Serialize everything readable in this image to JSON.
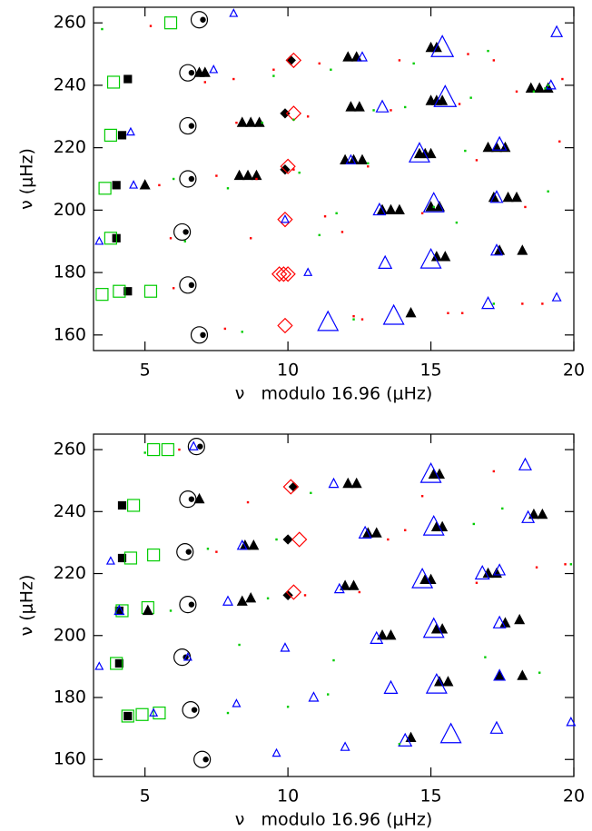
{
  "chart_data": [
    {
      "type": "scatter",
      "xlabel": "ν   modulo 16.96 (μHz)",
      "ylabel": "ν (μHz)",
      "xlim": [
        3.2,
        20
      ],
      "ylim": [
        155,
        265
      ],
      "xticks": [
        5,
        10,
        15,
        20
      ],
      "yticks": [
        160,
        180,
        200,
        220,
        240,
        260
      ],
      "series": [
        {
          "marker": "circle-dot",
          "color": "#000000",
          "size": 1,
          "x": [
            6.9,
            6.5,
            6.5,
            6.5,
            6.3,
            6.5,
            6.9
          ],
          "values": [
            261,
            244,
            227,
            210,
            193,
            176,
            160
          ]
        },
        {
          "marker": "square",
          "filled": true,
          "color": "#000000",
          "size": 0.8,
          "x": [
            4.4,
            4.2,
            4.0,
            4.0,
            4.4
          ],
          "values": [
            242,
            224,
            208,
            191,
            174
          ]
        },
        {
          "marker": "square",
          "filled": false,
          "color": "#00cc00",
          "size": 1.3,
          "x": [
            5.9,
            3.9,
            3.8,
            3.6,
            3.8,
            4.1,
            3.5,
            5.2
          ],
          "values": [
            260,
            241,
            224,
            207,
            191,
            174,
            173,
            174
          ]
        },
        {
          "marker": "diamond",
          "filled": true,
          "color": "#000000",
          "size": 0.8,
          "x": [
            10.1,
            9.9,
            9.9
          ],
          "values": [
            248,
            231,
            213
          ]
        },
        {
          "marker": "diamond",
          "filled": false,
          "color": "#ff0000",
          "size": 1.3,
          "x": [
            10.2,
            10.2,
            10.0,
            9.9,
            9.7,
            9.85,
            10.0,
            9.9
          ],
          "values": [
            248,
            231,
            214,
            197,
            179.5,
            179.5,
            179.5,
            163
          ]
        },
        {
          "marker": "triangle",
          "filled": true,
          "color": "#000000",
          "size": 1,
          "x": [
            12.1,
            12.4,
            15.0,
            15.2,
            18.5,
            18.8,
            19.1,
            15.0,
            15.2,
            15.4,
            12.2,
            12.5,
            8.4,
            8.7,
            9.0,
            6.9,
            7.1,
            14.6,
            14.8,
            15.0,
            17.0,
            17.3,
            17.6,
            12.0,
            12.3,
            12.6,
            8.3,
            8.6,
            8.9,
            5.0,
            17.2,
            17.7,
            18.0,
            15.0,
            15.3,
            13.3,
            13.6,
            13.9,
            17.4,
            18.2,
            15.2,
            15.5,
            14.3
          ],
          "values": [
            249,
            249,
            252,
            252,
            239,
            239,
            239,
            235,
            235,
            235,
            233,
            233,
            228,
            228,
            228,
            244,
            244,
            218,
            218,
            218,
            220,
            220,
            220,
            216,
            216,
            216,
            211,
            211,
            211,
            208,
            204,
            204,
            204,
            201,
            201,
            200,
            200,
            200,
            187,
            187,
            185,
            185,
            167
          ]
        },
        {
          "marker": "triangle",
          "filled": false,
          "color": "#0000ff",
          "x": [
            8.1,
            7.4,
            12.6,
            15.4,
            19.4,
            19.2,
            15.5,
            13.3,
            4.5,
            12.2,
            14.6,
            17.4,
            4.6,
            15.1,
            17.3,
            13.2,
            3.4,
            9.9,
            17.3,
            15.0,
            13.4,
            10.7,
            11.4,
            13.7,
            17.0,
            19.4
          ],
          "values": [
            263,
            245,
            249,
            252,
            257,
            240,
            236,
            233,
            225,
            216,
            218,
            221,
            208,
            202,
            204,
            200,
            190,
            197,
            187,
            184,
            183,
            180,
            164,
            166,
            170,
            172
          ],
          "sizes": [
            0.8,
            0.8,
            1,
            2.4,
            1.2,
            1,
            2.4,
            1.3,
            0.8,
            1,
            2.2,
            1.5,
            0.8,
            2.2,
            1.3,
            1.3,
            0.8,
            0.8,
            1.2,
            2.2,
            1.4,
            0.8,
            2.2,
            2.2,
            1.3,
            0.9
          ]
        },
        {
          "marker": "dot",
          "color": "#ff0000",
          "size": 1,
          "x": [
            5.2,
            7.1,
            8.1,
            9.5,
            11.1,
            13.9,
            16.3,
            17.2,
            19.6,
            8.2,
            10.7,
            13.6,
            16.0,
            18.0,
            7.5,
            10.2,
            12.8,
            16.6,
            19.5,
            5.5,
            8.9,
            11.3,
            14.7,
            18.3,
            5.9,
            8.7,
            11.9,
            6.0,
            12.3,
            16.1,
            18.9,
            7.8,
            12.6,
            15.6,
            18.2
          ],
          "values": [
            259,
            241,
            242,
            245,
            247,
            248,
            250,
            248,
            242,
            228,
            230,
            232,
            234,
            238,
            211,
            213,
            214,
            216,
            222,
            208,
            210,
            198,
            199,
            201,
            191,
            191,
            193,
            175,
            166,
            167,
            170,
            162,
            165,
            167,
            170
          ]
        },
        {
          "marker": "dot",
          "color": "#00cc00",
          "size": 1,
          "x": [
            3.5,
            9.5,
            11.5,
            14.4,
            17.0,
            19.0,
            10.2,
            14.1,
            18.6,
            9.1,
            13.0,
            16.4,
            19.1,
            6.0,
            10.4,
            12.8,
            16.2,
            7.9,
            11.7,
            15.1,
            19.1,
            6.4,
            11.1,
            15.9,
            8.4,
            12.3,
            17.2
          ],
          "values": [
            258,
            243,
            245,
            247,
            251,
            239,
            229,
            233,
            238,
            228,
            232,
            236,
            240,
            210,
            212,
            215,
            219,
            207,
            199,
            201,
            206,
            190,
            192,
            196,
            161,
            165,
            170
          ]
        }
      ]
    },
    {
      "type": "scatter",
      "xlabel": "ν   modulo 16.96 (μHz)",
      "ylabel": "ν (μHz)",
      "xlim": [
        3.2,
        20
      ],
      "ylim": [
        154.5,
        265
      ],
      "xticks": [
        5,
        10,
        15,
        20
      ],
      "yticks": [
        160,
        180,
        200,
        220,
        240,
        260
      ],
      "series": [
        {
          "marker": "circle-dot",
          "color": "#000000",
          "size": 1,
          "x": [
            6.8,
            6.5,
            6.4,
            6.5,
            6.3,
            6.6,
            7.0
          ],
          "values": [
            261,
            244,
            227,
            210,
            193,
            176,
            160
          ]
        },
        {
          "marker": "square",
          "filled": true,
          "color": "#000000",
          "size": 0.8,
          "x": [
            4.2,
            4.2,
            4.1,
            4.1,
            4.4
          ],
          "values": [
            242,
            225,
            208,
            191,
            174
          ]
        },
        {
          "marker": "square",
          "filled": false,
          "color": "#00cc00",
          "size": 1.3,
          "x": [
            5.8,
            4.6,
            4.5,
            4.2,
            4.0,
            4.4,
            5.3,
            5.3,
            5.1,
            5.5,
            4.9
          ],
          "values": [
            260,
            242,
            225,
            208,
            191,
            174,
            226,
            260,
            209,
            175,
            174.5
          ]
        },
        {
          "marker": "diamond",
          "filled": true,
          "color": "#000000",
          "size": 0.8,
          "x": [
            10.2,
            10.0,
            10.0
          ],
          "values": [
            248,
            231,
            213
          ]
        },
        {
          "marker": "diamond",
          "filled": false,
          "color": "#ff0000",
          "size": 1.3,
          "x": [
            10.1,
            10.4,
            10.2
          ],
          "values": [
            248,
            231,
            214
          ]
        },
        {
          "marker": "triangle",
          "filled": true,
          "color": "#000000",
          "size": 1,
          "x": [
            12.1,
            12.4,
            15.1,
            15.3,
            18.6,
            18.9,
            6.9,
            15.2,
            15.4,
            12.8,
            13.1,
            8.5,
            8.8,
            14.8,
            15.0,
            17.0,
            17.3,
            12.0,
            12.3,
            8.4,
            8.7,
            15.2,
            15.4,
            13.3,
            13.6,
            17.6,
            18.1,
            15.3,
            15.6,
            17.4,
            18.2,
            14.3,
            5.1
          ],
          "values": [
            249,
            249,
            252,
            252,
            239,
            239,
            244,
            235,
            235,
            233,
            233,
            229,
            229,
            218,
            218,
            220,
            220,
            216,
            216,
            211,
            212,
            202,
            202,
            200,
            200,
            204,
            205,
            185,
            185,
            187,
            187,
            167,
            208
          ]
        },
        {
          "marker": "triangle",
          "filled": false,
          "color": "#0000ff",
          "x": [
            6.7,
            11.6,
            15.0,
            18.3,
            15.1,
            12.7,
            18.4,
            3.8,
            8.4,
            14.7,
            16.8,
            17.4,
            11.8,
            4.1,
            7.9,
            15.1,
            17.4,
            13.1,
            3.4,
            6.5,
            9.9,
            15.2,
            17.4,
            13.6,
            10.9,
            8.2,
            5.3,
            14.1,
            15.7,
            17.3,
            19.9,
            12.0,
            9.6
          ],
          "values": [
            261,
            249,
            252,
            255,
            235,
            233,
            238,
            224,
            229,
            218,
            220,
            221,
            215,
            208,
            211,
            202,
            204,
            199,
            190,
            193,
            196,
            184,
            187,
            183,
            180,
            178,
            175,
            166,
            168,
            170,
            172,
            164,
            162
          ],
          "sizes": [
            0.9,
            1,
            2.2,
            1.3,
            2.2,
            1.3,
            1.3,
            0.8,
            1,
            2.2,
            1.5,
            1.2,
            1,
            1,
            1,
            2.2,
            1.3,
            1.3,
            0.8,
            0.8,
            0.9,
            2.2,
            1.2,
            1.4,
            1,
            0.8,
            0.8,
            1.4,
            2.2,
            1.3,
            0.9,
            0.9,
            0.8
          ]
        },
        {
          "marker": "dot",
          "color": "#ff0000",
          "size": 1,
          "x": [
            6.2,
            8.6,
            14.7,
            17.2,
            7.5,
            13.5,
            14.1,
            18.7,
            10.6,
            12.5,
            16.6,
            19.7
          ],
          "values": [
            260,
            243,
            245,
            253,
            227,
            231,
            234,
            222,
            213,
            214,
            217,
            223
          ]
        },
        {
          "marker": "dot",
          "color": "#00cc00",
          "size": 1,
          "x": [
            5.0,
            10.8,
            17.5,
            7.2,
            9.6,
            16.5,
            19.9,
            9.3,
            5.9,
            8.3,
            11.6,
            16.9,
            18.8,
            10.0,
            7.9,
            11.4,
            13.9
          ],
          "values": [
            259,
            246,
            241,
            228,
            231,
            236,
            223,
            212,
            208,
            197,
            192,
            193,
            188,
            177,
            175,
            181,
            165
          ]
        }
      ]
    }
  ]
}
